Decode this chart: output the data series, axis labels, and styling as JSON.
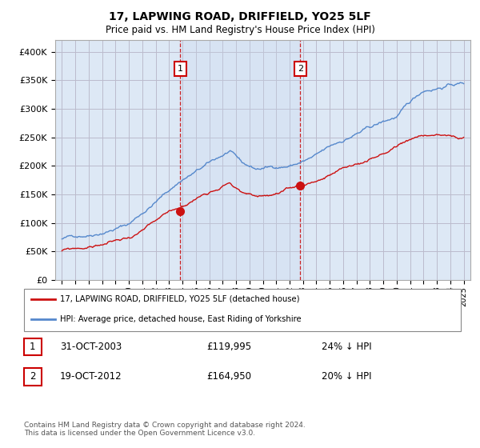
{
  "title": "17, LAPWING ROAD, DRIFFIELD, YO25 5LF",
  "subtitle": "Price paid vs. HM Land Registry's House Price Index (HPI)",
  "ylabel_ticks": [
    "£0",
    "£50K",
    "£100K",
    "£150K",
    "£200K",
    "£250K",
    "£300K",
    "£350K",
    "£400K"
  ],
  "ytick_values": [
    0,
    50000,
    100000,
    150000,
    200000,
    250000,
    300000,
    350000,
    400000
  ],
  "ylim": [
    0,
    420000
  ],
  "xlim_start": 1994.5,
  "xlim_end": 2025.5,
  "background_color": "#ffffff",
  "plot_bg_color": "#dde8f5",
  "grid_color": "#bbbbcc",
  "hpi_color": "#5588cc",
  "price_color": "#cc1111",
  "sale1_year": 2003.83,
  "sale1_price": 119995,
  "sale2_year": 2012.79,
  "sale2_price": 164950,
  "legend_label1": "17, LAPWING ROAD, DRIFFIELD, YO25 5LF (detached house)",
  "legend_label2": "HPI: Average price, detached house, East Riding of Yorkshire",
  "annotation1_date": "31-OCT-2003",
  "annotation1_price": "£119,995",
  "annotation1_pct": "24% ↓ HPI",
  "annotation2_date": "19-OCT-2012",
  "annotation2_price": "£164,950",
  "annotation2_pct": "20% ↓ HPI",
  "footer": "Contains HM Land Registry data © Crown copyright and database right 2024.\nThis data is licensed under the Open Government Licence v3.0."
}
